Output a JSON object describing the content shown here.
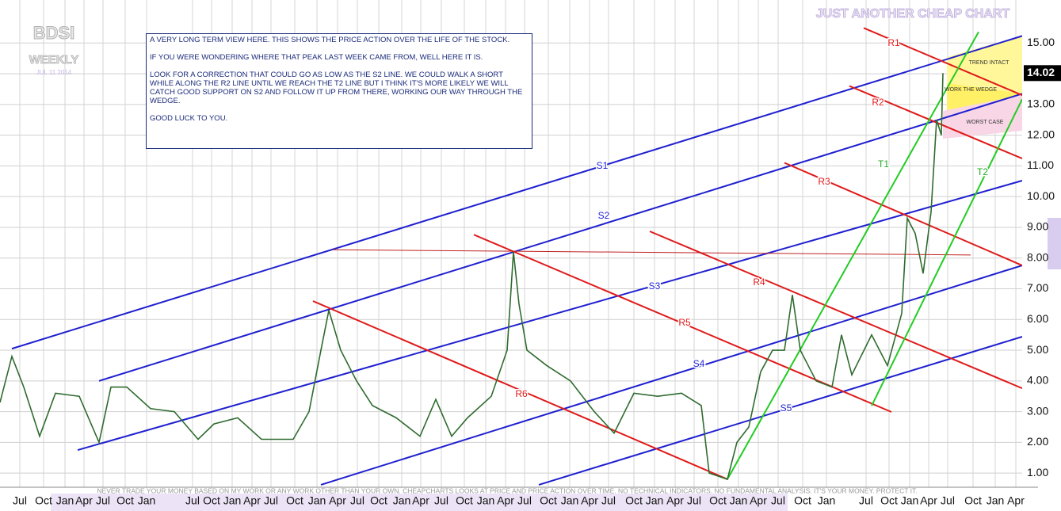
{
  "chart_data": {
    "type": "line",
    "title": "BDSI",
    "subtitle": "WEEKLY",
    "date": "JUL 11 2014",
    "brand": "JUST ANOTHER CHEAP CHART",
    "note": [
      "A VERY LONG TERM VIEW HERE. THIS SHOWS THE PRICE ACTION OVER THE LIFE OF THE STOCK.",
      "IF YOU WERE WONDERING WHERE THAT PEAK LAST WEEK CAME FROM, WELL HERE IT IS.",
      "LOOK FOR A CORRECTION THAT COULD GO AS LOW AS THE S2 LINE. WE COULD WALK A SHORT WHILE ALONG THE R2 LINE UNTIL WE REACH THE T2 LINE BUT I THINK IT'S MORE LIKELY WE WILL CATCH GOOD SUPPORT ON S2 AND FOLLOW IT UP FROM THERE, WORKING OUR WAY THROUGH THE WEDGE.",
      "GOOD LUCK TO YOU."
    ],
    "disclaimer": "NEVER TRADE YOUR MONEY BASED ON MY WORK OR ANY WORK OTHER THAN YOUR OWN. CHEAPCHARTS LOOKS AT PRICE AND PRICE ACTION OVER TIME. NO TECHNICAL INDICATORS. NO FUNDAMENTAL ANALYSIS. IT'S YOUR MONEY. PROTECT IT.",
    "zones": [
      {
        "label": "TREND INTACT"
      },
      {
        "label": "WORK THE WEDGE"
      },
      {
        "label": "WORST CASE"
      }
    ],
    "xlim": [
      0,
      645
    ],
    "ylim": [
      0.54,
      16.4
    ],
    "grid": true,
    "yticks": [
      {
        "value": 1,
        "label": "1.00"
      },
      {
        "value": 2,
        "label": "2.00"
      },
      {
        "value": 3,
        "label": "3.00"
      },
      {
        "value": 4,
        "label": "4.00"
      },
      {
        "value": 5,
        "label": "5.00"
      },
      {
        "value": 6,
        "label": "6.00"
      },
      {
        "value": 7,
        "label": "7.00"
      },
      {
        "value": 8,
        "label": "8.00"
      },
      {
        "value": 9,
        "label": "9.00"
      },
      {
        "value": 10,
        "label": "10.00"
      },
      {
        "value": 11,
        "label": "11.00"
      },
      {
        "value": 12,
        "label": "12.00"
      },
      {
        "value": 13,
        "label": "13.00"
      },
      {
        "value": 14,
        "label": "14.00"
      },
      {
        "value": 15,
        "label": "15.00"
      }
    ],
    "xticks": [
      {
        "value": 12.5,
        "label": "Jul"
      },
      {
        "value": 27.5,
        "label": "Oct"
      },
      {
        "value": 41,
        "label": "Jan"
      },
      {
        "value": 53,
        "label": "Apr"
      },
      {
        "value": 65,
        "label": "Jul"
      },
      {
        "value": 79,
        "label": "Oct"
      },
      {
        "value": 92.5,
        "label": "Jan"
      },
      {
        "value": 121.5,
        "label": "Jul"
      },
      {
        "value": 133.5,
        "label": "Oct"
      },
      {
        "value": 146.5,
        "label": "Jan"
      },
      {
        "value": 159,
        "label": "Apr"
      },
      {
        "value": 171,
        "label": "Jul"
      },
      {
        "value": 186,
        "label": "Oct"
      },
      {
        "value": 200,
        "label": "Jan"
      },
      {
        "value": 213,
        "label": "Apr"
      },
      {
        "value": 225.5,
        "label": "Jul"
      },
      {
        "value": 239,
        "label": "Oct"
      },
      {
        "value": 253.5,
        "label": "Jan"
      },
      {
        "value": 265.5,
        "label": "Apr"
      },
      {
        "value": 278.5,
        "label": "Jul"
      },
      {
        "value": 293,
        "label": "Oct"
      },
      {
        "value": 306.5,
        "label": "Jan"
      },
      {
        "value": 319,
        "label": "Apr"
      },
      {
        "value": 331,
        "label": "Jul"
      },
      {
        "value": 346,
        "label": "Oct"
      },
      {
        "value": 359.5,
        "label": "Jan"
      },
      {
        "value": 372,
        "label": "Apr"
      },
      {
        "value": 384,
        "label": "Jul"
      },
      {
        "value": 400,
        "label": "Oct"
      },
      {
        "value": 413,
        "label": "Jan"
      },
      {
        "value": 426,
        "label": "Apr"
      },
      {
        "value": 438,
        "label": "Jul"
      },
      {
        "value": 453,
        "label": "Oct"
      },
      {
        "value": 466,
        "label": "Jan"
      },
      {
        "value": 478.5,
        "label": "Apr"
      },
      {
        "value": 491,
        "label": "Jul"
      },
      {
        "value": 506.5,
        "label": "Oct"
      },
      {
        "value": 521.5,
        "label": "Jan"
      },
      {
        "value": 546.5,
        "label": "Jul"
      },
      {
        "value": 561,
        "label": "Oct"
      },
      {
        "value": 574,
        "label": "Jan"
      },
      {
        "value": 586,
        "label": "Apr"
      },
      {
        "value": 598,
        "label": "Jul"
      },
      {
        "value": 614,
        "label": "Oct"
      },
      {
        "value": 628,
        "label": "Jan"
      },
      {
        "value": 641,
        "label": "Apr"
      }
    ],
    "price": {
      "color": "#2f6b2f",
      "x": [
        0,
        7.5,
        15,
        25,
        35,
        50,
        62.5,
        70,
        80,
        95,
        110,
        125,
        135,
        150,
        165,
        185,
        195,
        202.5,
        207.5,
        215,
        225,
        235,
        250,
        265,
        275,
        285,
        295,
        310,
        320,
        324,
        327.5,
        332.5,
        345,
        360,
        375,
        387.5,
        400,
        415,
        430,
        442.5,
        447.5,
        459,
        465,
        472.5,
        480,
        487.5,
        495,
        500,
        505,
        515,
        525,
        531,
        537.5,
        550,
        560,
        569,
        572.5,
        577.5,
        582.5,
        587.5,
        591,
        594,
        595
      ],
      "values": [
        3.3,
        4.8,
        3.8,
        2.2,
        3.6,
        3.5,
        2.0,
        3.8,
        3.8,
        3.1,
        3.0,
        2.1,
        2.6,
        2.8,
        2.1,
        2.1,
        3.0,
        5.0,
        6.3,
        5.0,
        4.0,
        3.2,
        2.8,
        2.2,
        3.4,
        2.2,
        2.8,
        3.5,
        5.0,
        8.2,
        6.5,
        5.0,
        4.5,
        4.0,
        3.0,
        2.3,
        3.6,
        3.5,
        3.6,
        3.2,
        1.0,
        0.8,
        2.0,
        2.5,
        4.3,
        5.0,
        5.0,
        6.8,
        5.0,
        4.0,
        3.8,
        5.5,
        4.2,
        5.5,
        4.5,
        6.2,
        9.3,
        8.8,
        7.5,
        9.5,
        12.5,
        12.0,
        14.02
      ]
    },
    "last_price": 14.02,
    "lines": [
      {
        "name": "S1",
        "color": "#1f1fd0",
        "x": [
          7.5,
          645
        ],
        "values": [
          5.05,
          15.23
        ]
      },
      {
        "name": "S2",
        "color": "#1f1fd0",
        "x": [
          62.5,
          645
        ],
        "values": [
          4.0,
          13.35
        ]
      },
      {
        "name": "S3",
        "color": "#1f1fd0",
        "x": [
          49,
          645
        ],
        "values": [
          1.75,
          10.52
        ]
      },
      {
        "name": "S4",
        "color": "#1f1fd0",
        "x": [
          202.5,
          645
        ],
        "values": [
          0.62,
          7.76
        ]
      },
      {
        "name": "S5",
        "color": "#1f1fd0",
        "x": [
          340,
          645
        ],
        "values": [
          0.62,
          5.44
        ]
      },
      {
        "name": "R1",
        "color": "#e01a1a",
        "x": [
          545,
          645
        ],
        "values": [
          15.49,
          13.3
        ]
      },
      {
        "name": "R2",
        "color": "#e01a1a",
        "x": [
          536,
          645
        ],
        "values": [
          13.6,
          11.24
        ]
      },
      {
        "name": "R3",
        "color": "#e01a1a",
        "x": [
          495,
          645
        ],
        "values": [
          11.1,
          7.76
        ]
      },
      {
        "name": "R4",
        "color": "#e01a1a",
        "x": [
          410,
          645
        ],
        "values": [
          8.87,
          3.76
        ]
      },
      {
        "name": "R5",
        "color": "#e01a1a",
        "x": [
          299,
          562.5
        ],
        "values": [
          8.76,
          2.99
        ]
      },
      {
        "name": "R6",
        "color": "#e01a1a",
        "x": [
          197.5,
          459
        ],
        "values": [
          6.6,
          0.8
        ]
      },
      {
        "color": "#c02020",
        "x": [
          210,
          612.5
        ],
        "values": [
          8.27,
          8.1
        ]
      },
      {
        "name": "T1",
        "color": "#22cc22",
        "x": [
          459,
          617.5
        ],
        "values": [
          0.8,
          15.36
        ]
      },
      {
        "name": "T2",
        "color": "#22cc22",
        "x": [
          550,
          645
        ],
        "values": [
          3.19,
          13.17
        ]
      }
    ]
  }
}
